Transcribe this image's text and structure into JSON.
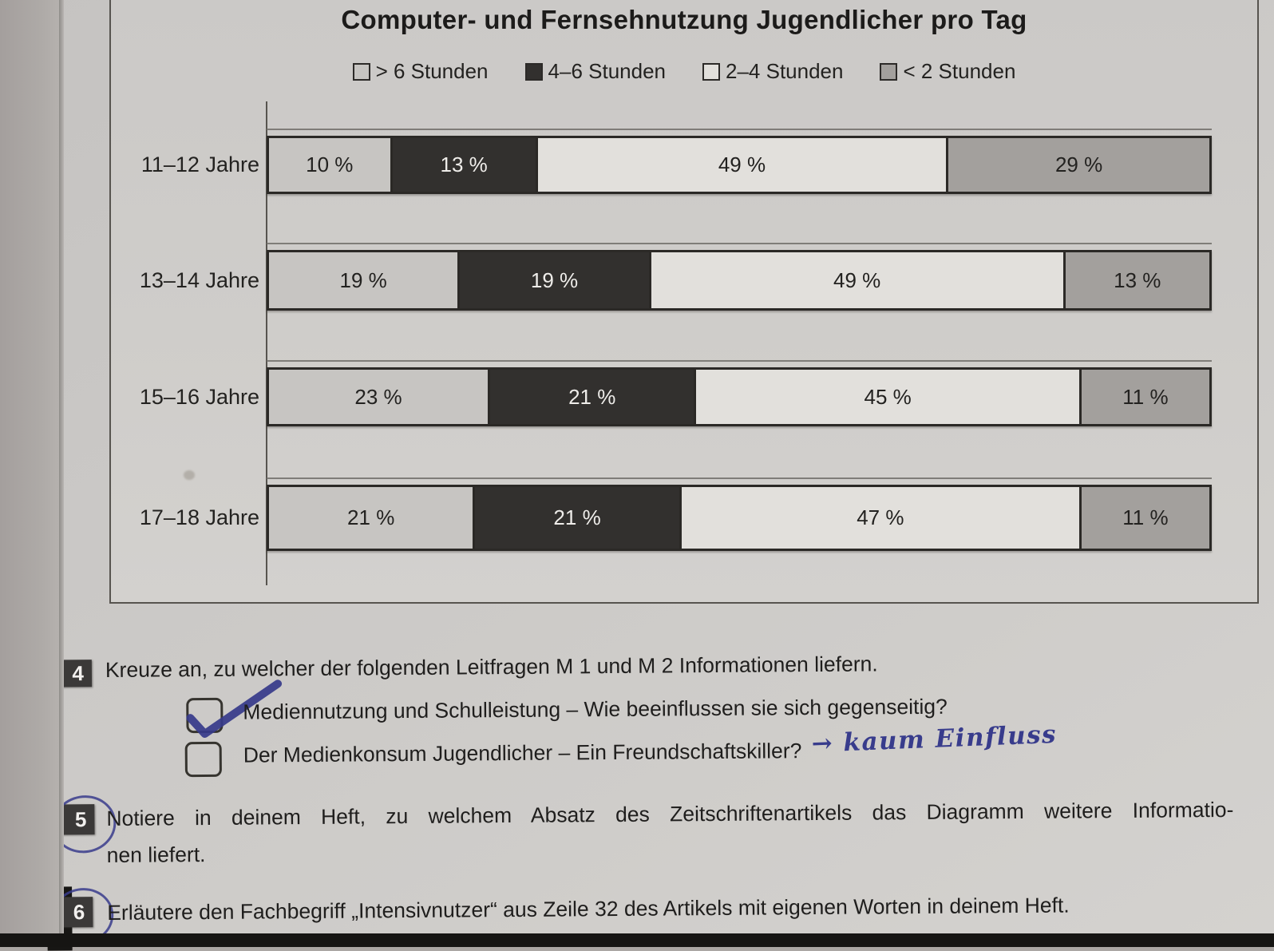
{
  "chart_data": {
    "type": "bar",
    "orientation": "horizontal-stacked",
    "title": "Computer- und Fernsehnutzung Jugendlicher pro Tag",
    "categories": [
      "11–12 Jahre",
      "13–14 Jahre",
      "15–16 Jahre",
      "17–18 Jahre"
    ],
    "series": [
      {
        "name": "> 6 Stunden",
        "color": "#c7c5c2",
        "text_color": "#232220",
        "values": [
          10,
          19,
          23,
          21
        ]
      },
      {
        "name": "4–6 Stunden",
        "color": "#32302e",
        "text_color": "#efedea",
        "values": [
          13,
          19,
          21,
          21
        ]
      },
      {
        "name": "2–4 Stunden",
        "color": "#e2e0dc",
        "text_color": "#232220",
        "values": [
          49,
          49,
          45,
          47
        ]
      },
      {
        "name": "< 2 Stunden",
        "color": "#a3a09d",
        "text_color": "#232220",
        "values": [
          29,
          13,
          11,
          11
        ]
      }
    ],
    "unit": "%",
    "value_suffix": " %",
    "legend_position": "top",
    "xlim": [
      0,
      100
    ],
    "grid": false
  },
  "tasks": [
    {
      "number": "4",
      "circled": false,
      "text": "Kreuze an, zu welcher der folgenden Leitfragen M 1 und M 2 Informationen liefern.",
      "options": [
        {
          "checked": true,
          "label": "Mediennutzung und Schulleistung – Wie beeinflussen sie sich gegenseitig?",
          "annotation": ""
        },
        {
          "checked": false,
          "label": "Der Medienkonsum Jugendlicher – Ein Freundschaftskiller?",
          "annotation": "→ kaum Einfluss"
        }
      ]
    },
    {
      "number": "5",
      "circled": true,
      "lines": [
        "Notiere in deinem Heft, zu welchem Absatz des Zeitschriftenartikels das Diagramm weitere Informatio-",
        "nen liefert."
      ]
    },
    {
      "number": "6",
      "circled": true,
      "text": "Erläutere den Fachbegriff „Intensivnutzer“ aus Zeile 32 des Artikels mit eigenen Worten in deinem Heft."
    }
  ]
}
